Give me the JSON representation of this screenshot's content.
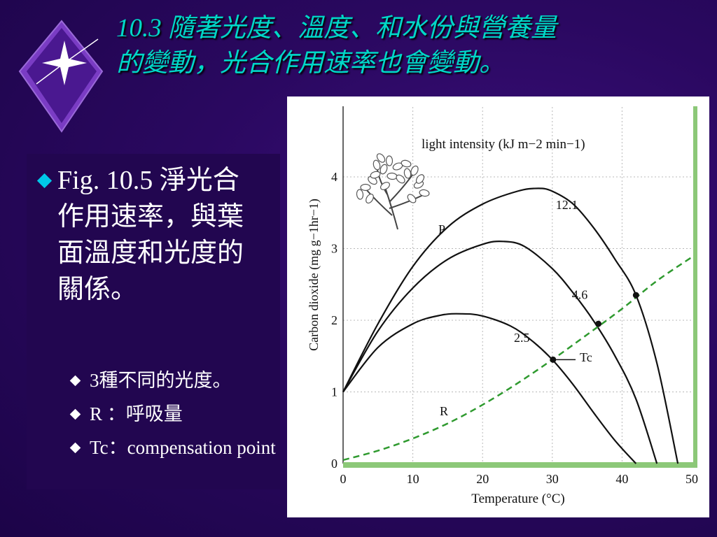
{
  "slide": {
    "title_line1": "10.3 隨著光度、溫度、和水份與營養量",
    "title_line2": "的變動，光合作用速率也會變動。",
    "main_bullet": "Fig. 10.5 淨光合作用速率，與葉面溫度和光度的關係。",
    "sub_bullets": [
      "3種不同的光度。",
      "R ：呼吸量",
      "Tc：compensation point"
    ]
  },
  "colors": {
    "title": "#00d8c8",
    "bullet_accent": "#00c8e8",
    "respiration_curve": "#2f9a2f",
    "frame_green": "#8cc878"
  },
  "icons": {
    "logo": "sparkle-diamond-icon",
    "plant": "plant-illustration-icon"
  },
  "chart_data": {
    "type": "line",
    "xlabel": "Temperature (°C)",
    "ylabel": "Carbon dioxide (mg g−1hr−1)",
    "xlim": [
      0,
      50
    ],
    "ylim": [
      0,
      4
    ],
    "xticks": [
      0,
      10,
      20,
      30,
      40,
      50
    ],
    "yticks": [
      0,
      1,
      2,
      3,
      4
    ],
    "grid": true,
    "legend_title": "light intensity (kJ m−2 min−1)",
    "labels": {
      "P": "P",
      "R": "R",
      "Tc": "Tc"
    },
    "series": [
      {
        "name": "12.1",
        "x": [
          0,
          5,
          10,
          15,
          20,
          25,
          28,
          30,
          33,
          36,
          39,
          42,
          45,
          48
        ],
        "y": [
          1.0,
          1.95,
          2.75,
          3.3,
          3.62,
          3.8,
          3.84,
          3.8,
          3.62,
          3.28,
          2.85,
          2.35,
          1.4,
          0.0
        ]
      },
      {
        "name": "4.6",
        "x": [
          0,
          5,
          10,
          15,
          20,
          23,
          26,
          30,
          33,
          36,
          39,
          42,
          45
        ],
        "y": [
          1.0,
          1.85,
          2.45,
          2.85,
          3.06,
          3.1,
          3.03,
          2.72,
          2.38,
          1.98,
          1.5,
          0.9,
          0.0
        ]
      },
      {
        "name": "2.5",
        "x": [
          0,
          5,
          10,
          14,
          17,
          20,
          24,
          27,
          30,
          33,
          36,
          39,
          42
        ],
        "y": [
          1.0,
          1.62,
          1.95,
          2.07,
          2.09,
          2.06,
          1.92,
          1.72,
          1.45,
          1.1,
          0.7,
          0.32,
          0.0
        ]
      },
      {
        "name": "R",
        "x": [
          0,
          5,
          10,
          15,
          20,
          25,
          30,
          35,
          40,
          45,
          50
        ],
        "y": [
          0.05,
          0.18,
          0.35,
          0.56,
          0.82,
          1.12,
          1.45,
          1.8,
          2.16,
          2.55,
          2.88
        ]
      }
    ],
    "compensation_points": [
      {
        "x": 30.1,
        "y": 1.45
      },
      {
        "x": 36.6,
        "y": 1.95
      },
      {
        "x": 42.0,
        "y": 2.35
      }
    ]
  }
}
